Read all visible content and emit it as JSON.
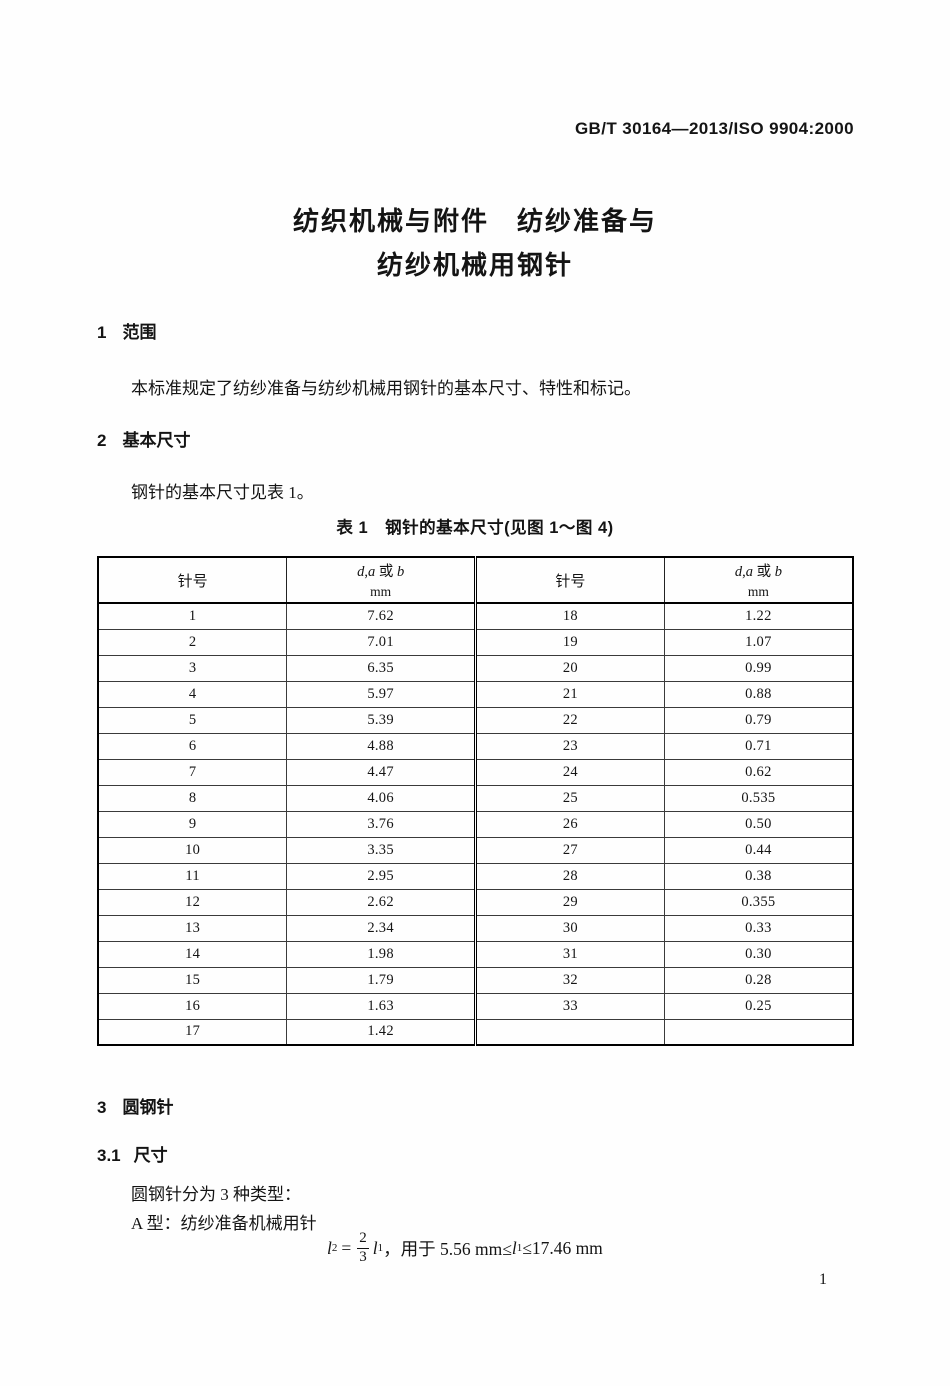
{
  "header": {
    "doc_code": "GB/T 30164—2013/ISO 9904:2000"
  },
  "title": {
    "line1": "纺织机械与附件　纺纱准备与",
    "line2": "纺纱机械用钢针"
  },
  "section1": {
    "number": "1",
    "heading": "范围",
    "body": "本标准规定了纺纱准备与纺纱机械用钢针的基本尺寸、特性和标记。"
  },
  "section2": {
    "number": "2",
    "heading": "基本尺寸",
    "body": "钢针的基本尺寸见表 1。"
  },
  "table": {
    "caption": "表 1　钢针的基本尺寸(见图 1～图 4)",
    "header": {
      "needle_label": "针号",
      "dim_d": "d",
      "dim_comma": ",",
      "dim_a": "a",
      "dim_or": " 或 ",
      "dim_b": "b",
      "unit": "mm"
    },
    "rows": [
      [
        "1",
        "7.62",
        "18",
        "1.22"
      ],
      [
        "2",
        "7.01",
        "19",
        "1.07"
      ],
      [
        "3",
        "6.35",
        "20",
        "0.99"
      ],
      [
        "4",
        "5.97",
        "21",
        "0.88"
      ],
      [
        "5",
        "5.39",
        "22",
        "0.79"
      ],
      [
        "6",
        "4.88",
        "23",
        "0.71"
      ],
      [
        "7",
        "4.47",
        "24",
        "0.62"
      ],
      [
        "8",
        "4.06",
        "25",
        "0.535"
      ],
      [
        "9",
        "3.76",
        "26",
        "0.50"
      ],
      [
        "10",
        "3.35",
        "27",
        "0.44"
      ],
      [
        "11",
        "2.95",
        "28",
        "0.38"
      ],
      [
        "12",
        "2.62",
        "29",
        "0.355"
      ],
      [
        "13",
        "2.34",
        "30",
        "0.33"
      ],
      [
        "14",
        "1.98",
        "31",
        "0.30"
      ],
      [
        "15",
        "1.79",
        "32",
        "0.28"
      ],
      [
        "16",
        "1.63",
        "33",
        "0.25"
      ],
      [
        "17",
        "1.42",
        "",
        ""
      ]
    ]
  },
  "section3": {
    "number": "3",
    "heading": "圆钢针"
  },
  "section31": {
    "number": "3.1",
    "heading": "尺寸",
    "line1": "圆钢针分为 3 种类型：",
    "line2": "A 型：纺纱准备机械用针"
  },
  "formula": {
    "lhs_var": "l",
    "lhs_sub": "2",
    "equals": "=",
    "numerator": "2",
    "denominator": "3",
    "rhs_var": "l",
    "rhs_sub": "1",
    "condition_pre": "，用于 5.56 mm≤",
    "cond_var": "l",
    "cond_sub": "1",
    "condition_post": "≤17.46 mm"
  },
  "footer": {
    "page_number": "1"
  }
}
